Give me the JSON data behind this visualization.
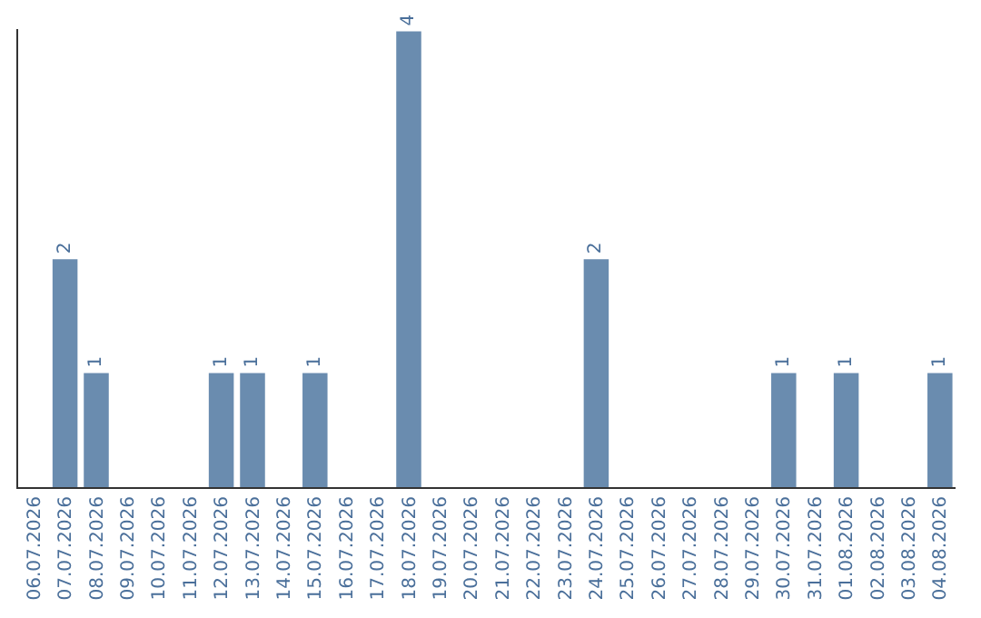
{
  "chart_data": {
    "type": "bar",
    "categories": [
      "06.07.2026",
      "07.07.2026",
      "08.07.2026",
      "09.07.2026",
      "10.07.2026",
      "11.07.2026",
      "12.07.2026",
      "13.07.2026",
      "14.07.2026",
      "15.07.2026",
      "16.07.2026",
      "17.07.2026",
      "18.07.2026",
      "19.07.2026",
      "20.07.2026",
      "21.07.2026",
      "22.07.2026",
      "23.07.2026",
      "24.07.2026",
      "25.07.2026",
      "26.07.2026",
      "27.07.2026",
      "28.07.2026",
      "29.07.2026",
      "30.07.2026",
      "31.07.2026",
      "01.08.2026",
      "02.08.2026",
      "03.08.2026",
      "04.08.2026"
    ],
    "values": [
      0,
      2,
      1,
      0,
      0,
      0,
      1,
      1,
      0,
      1,
      0,
      0,
      4,
      0,
      0,
      0,
      0,
      0,
      2,
      0,
      0,
      0,
      0,
      0,
      1,
      0,
      1,
      0,
      0,
      1
    ],
    "value_labels": [
      null,
      "2",
      "1",
      null,
      null,
      null,
      "1",
      "1",
      null,
      "1",
      null,
      null,
      "4",
      null,
      null,
      null,
      null,
      null,
      "2",
      null,
      null,
      null,
      null,
      null,
      "1",
      null,
      "1",
      null,
      null,
      "1"
    ],
    "color": "#6a8caf",
    "tick_labels": "x",
    "legend": false
  }
}
